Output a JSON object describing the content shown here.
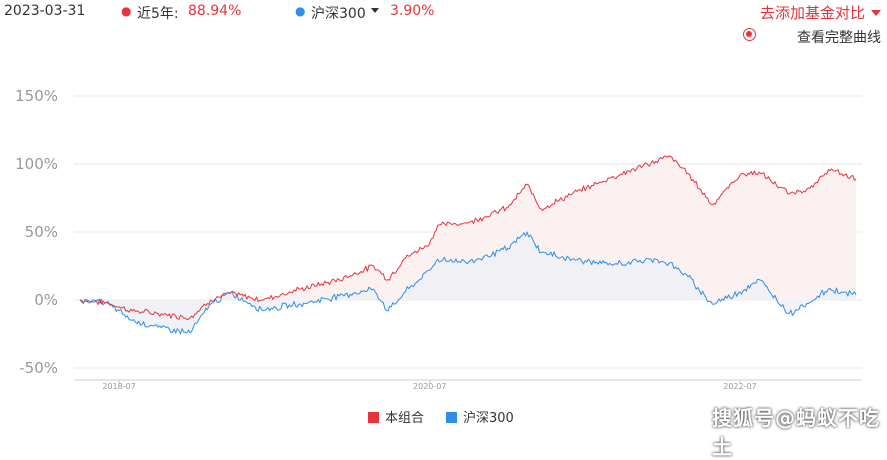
{
  "header": {
    "date": "2023-03-31",
    "portfolio_label": "近5年:",
    "portfolio_value": "88.94%",
    "benchmark_label": "沪深300",
    "benchmark_value": "3.90%",
    "add_compare_label": "去添加基金对比",
    "full_curve_label": "查看完整曲线"
  },
  "colors": {
    "portfolio": "#e8333c",
    "benchmark": "#2f8fe8",
    "fill_portfolio": "#fbeeee",
    "fill_benchmark": "#eef0f6"
  },
  "chart_data": {
    "type": "line",
    "title": "",
    "xlabel": "",
    "ylabel": "",
    "ylim": [
      -50,
      150
    ],
    "yticks": [
      150,
      100,
      50,
      0,
      -50
    ],
    "ytick_labels": [
      "150%",
      "100%",
      "50%",
      "0%",
      "-50%"
    ],
    "xlim": [
      "2018-03-31",
      "2023-03-31"
    ],
    "xtick_labels": [
      "2018-07",
      "2020-07",
      "2022-07"
    ],
    "xtick_dates": [
      "2018-07-01",
      "2020-07-01",
      "2022-07-01"
    ],
    "grid": true,
    "legend_position": "bottom",
    "series": [
      {
        "name": "本组合",
        "x": [
          "2018-03-31",
          "2018-06-01",
          "2018-08-01",
          "2018-10-01",
          "2018-12-15",
          "2019-02-01",
          "2019-03-20",
          "2019-06-01",
          "2019-09-01",
          "2019-12-01",
          "2020-02-20",
          "2020-03-25",
          "2020-05-01",
          "2020-07-01",
          "2020-07-20",
          "2020-10-01",
          "2021-01-01",
          "2021-02-15",
          "2021-03-20",
          "2021-06-01",
          "2021-09-01",
          "2021-12-15",
          "2022-01-15",
          "2022-03-01",
          "2022-04-27",
          "2022-07-01",
          "2022-08-15",
          "2022-10-25",
          "2022-12-20",
          "2023-01-25",
          "2023-03-31"
        ],
        "values": [
          0,
          -2,
          -8,
          -10,
          -13,
          0,
          5,
          0,
          8,
          15,
          25,
          15,
          30,
          42,
          55,
          57,
          68,
          85,
          67,
          78,
          90,
          102,
          106,
          93,
          70,
          92,
          94,
          78,
          83,
          96,
          88.94
        ]
      },
      {
        "name": "沪深300",
        "x": [
          "2018-03-31",
          "2018-06-01",
          "2018-08-01",
          "2018-10-01",
          "2018-12-15",
          "2019-02-01",
          "2019-03-20",
          "2019-06-01",
          "2019-09-01",
          "2019-12-01",
          "2020-02-20",
          "2020-03-25",
          "2020-05-01",
          "2020-07-01",
          "2020-07-20",
          "2020-10-01",
          "2021-01-01",
          "2021-02-15",
          "2021-03-20",
          "2021-06-01",
          "2021-09-01",
          "2021-12-15",
          "2022-01-15",
          "2022-03-01",
          "2022-04-27",
          "2022-07-01",
          "2022-08-15",
          "2022-10-25",
          "2022-12-20",
          "2023-01-25",
          "2023-03-31"
        ],
        "values": [
          0,
          -2,
          -15,
          -20,
          -24,
          -3,
          5,
          -7,
          -3,
          3,
          8,
          -8,
          5,
          22,
          30,
          28,
          38,
          50,
          35,
          30,
          26,
          30,
          27,
          17,
          -3,
          6,
          15,
          -10,
          0,
          8,
          3.9
        ]
      }
    ]
  },
  "legend": {
    "portfolio": "本组合",
    "benchmark": "沪深300"
  },
  "watermark": "搜狐号@蚂蚁不吃土"
}
